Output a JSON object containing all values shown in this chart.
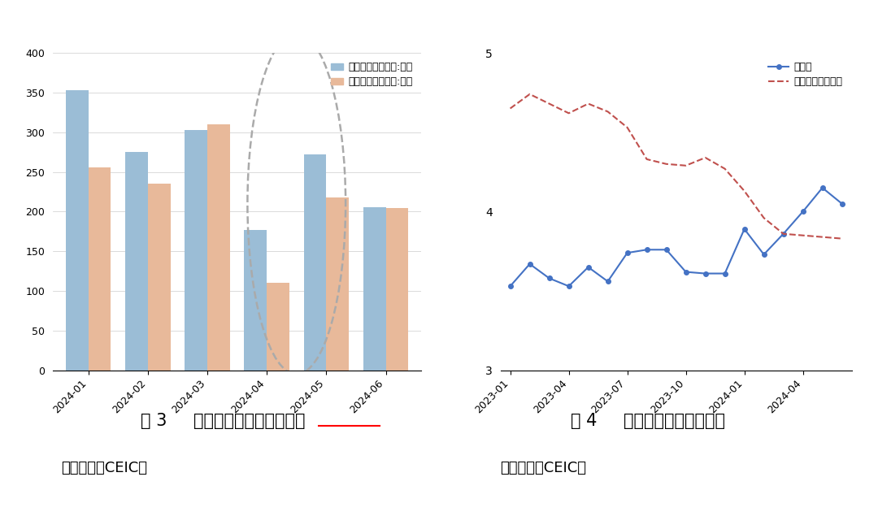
{
  "bar_categories": [
    "2024-01",
    "2024-02",
    "2024-03",
    "2024-04",
    "2024-05",
    "2024-06"
  ],
  "bar_initial": [
    353,
    275,
    303,
    177,
    272,
    206
  ],
  "bar_seasonal": [
    256,
    235,
    310,
    110,
    218,
    205
  ],
  "bar_color_initial": "#9BBDD6",
  "bar_color_seasonal": "#E8B99A",
  "bar_legend1": "新增非农就业人数:初値",
  "bar_legend2": "新增非农就业人数:季调",
  "bar_ylim": [
    0,
    400
  ],
  "bar_yticks": [
    0,
    50,
    100,
    150,
    200,
    250,
    300,
    350,
    400
  ],
  "bar_title_fig": "图 3",
  "bar_title_text": "美国非农就业初値和季调",
  "bar_title_underline": "季调",
  "bar_source": "数据来源：CEIC。",
  "line_x_labels": [
    "2023-01",
    "2023-04",
    "2023-07",
    "2023-10",
    "2024-01",
    "2024-04"
  ],
  "unemp_x": [
    0,
    1,
    2,
    3,
    4,
    5,
    6,
    7,
    8,
    9,
    10,
    11,
    12,
    13,
    14,
    15,
    16,
    17
  ],
  "unemp_y": [
    3.53,
    3.67,
    3.58,
    3.53,
    3.65,
    3.56,
    3.74,
    3.76,
    3.76,
    3.62,
    3.61,
    3.61,
    3.89,
    3.73,
    3.86,
    4.0,
    4.15,
    4.05
  ],
  "wage_x": [
    0,
    1,
    2,
    3,
    4,
    5,
    6,
    7,
    8,
    9,
    10,
    11,
    12,
    13,
    14,
    15,
    16,
    17
  ],
  "wage_y": [
    4.65,
    4.74,
    4.68,
    4.62,
    4.68,
    4.63,
    4.53,
    4.33,
    4.3,
    4.29,
    4.34,
    4.27,
    4.13,
    3.96,
    3.86,
    3.85,
    3.84,
    3.83
  ],
  "line_ylim": [
    3.0,
    5.0
  ],
  "line_yticks": [
    3,
    4,
    5
  ],
  "line_color_unemp": "#4472C4",
  "line_color_wage": "#C0504D",
  "line_legend1": "失业率",
  "line_legend2": "平均时薪同比增长",
  "line_title_fig": "图 4",
  "line_title_text": "美国失业率和时薪增长",
  "line_source": "数据来源：CEIC。",
  "bg_color": "#FFFFFF"
}
